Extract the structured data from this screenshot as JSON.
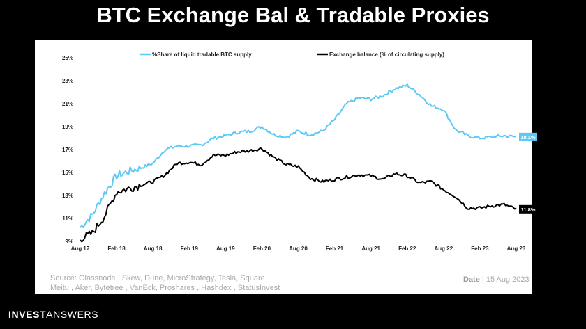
{
  "slide": {
    "title": "BTC Exchange Bal & Tradable Proxies",
    "source_line1": "Source:  Glassnode   , Skew, Dune, MicroStrategy, Tesla, Square,",
    "source_line2": "Meitu , Aker, Bytetree  , VanEck, Proshares , Hashdex , StatusInvest",
    "date_label": "Date",
    "date_value": "| 15 Aug 2023",
    "brand_bold": "INVEST",
    "brand_thin": "ANSWERS"
  },
  "chart_data": {
    "type": "line",
    "title": "",
    "xlabel": "",
    "ylabel": "",
    "x_ticks": [
      "Aug 17",
      "Feb 18",
      "Aug 18",
      "Feb 19",
      "Aug 19",
      "Feb 20",
      "Aug 20",
      "Feb 21",
      "Aug 21",
      "Feb 22",
      "Aug 22",
      "Feb 23",
      "Aug 23"
    ],
    "y_ticks": [
      "9%",
      "11%",
      "13%",
      "15%",
      "17%",
      "19%",
      "21%",
      "23%",
      "25%"
    ],
    "ylim": [
      9,
      25
    ],
    "xlim": [
      "2017-08",
      "2023-08"
    ],
    "grid": false,
    "legend_position": "top",
    "x": [
      "2017-08",
      "2017-10",
      "2017-12",
      "2018-02",
      "2018-04",
      "2018-06",
      "2018-08",
      "2018-10",
      "2018-12",
      "2019-02",
      "2019-04",
      "2019-06",
      "2019-08",
      "2019-10",
      "2019-12",
      "2020-02",
      "2020-04",
      "2020-06",
      "2020-08",
      "2020-10",
      "2020-12",
      "2021-02",
      "2021-04",
      "2021-06",
      "2021-08",
      "2021-10",
      "2021-12",
      "2022-02",
      "2022-04",
      "2022-06",
      "2022-08",
      "2022-10",
      "2022-12",
      "2023-02",
      "2023-04",
      "2023-06",
      "2023-08"
    ],
    "series": [
      {
        "name": "%Share of liquid tradable BTC supply",
        "color": "#5bc8f5",
        "end_label": "18.1%",
        "values": [
          10.2,
          11.3,
          13.2,
          14.7,
          15.1,
          15.4,
          15.8,
          17.0,
          17.3,
          17.3,
          17.4,
          18.0,
          18.2,
          18.5,
          18.6,
          19.0,
          18.3,
          18.1,
          18.6,
          18.3,
          18.6,
          19.6,
          21.0,
          21.5,
          21.4,
          21.7,
          22.3,
          22.6,
          21.8,
          20.8,
          20.5,
          18.7,
          18.2,
          18.0,
          18.1,
          18.2,
          18.1
        ]
      },
      {
        "name": "Exchange balance (% of circulating supply)",
        "color": "#000000",
        "end_label": "11.8%",
        "values": [
          9.2,
          9.7,
          11.2,
          13.3,
          13.6,
          13.9,
          14.2,
          14.8,
          15.8,
          15.9,
          15.7,
          16.5,
          16.5,
          16.8,
          16.9,
          17.1,
          16.3,
          15.7,
          15.5,
          14.5,
          14.2,
          14.4,
          14.6,
          14.8,
          14.7,
          14.4,
          14.9,
          14.7,
          14.1,
          14.2,
          13.5,
          12.9,
          11.9,
          11.9,
          12.1,
          12.2,
          11.8
        ]
      }
    ]
  }
}
